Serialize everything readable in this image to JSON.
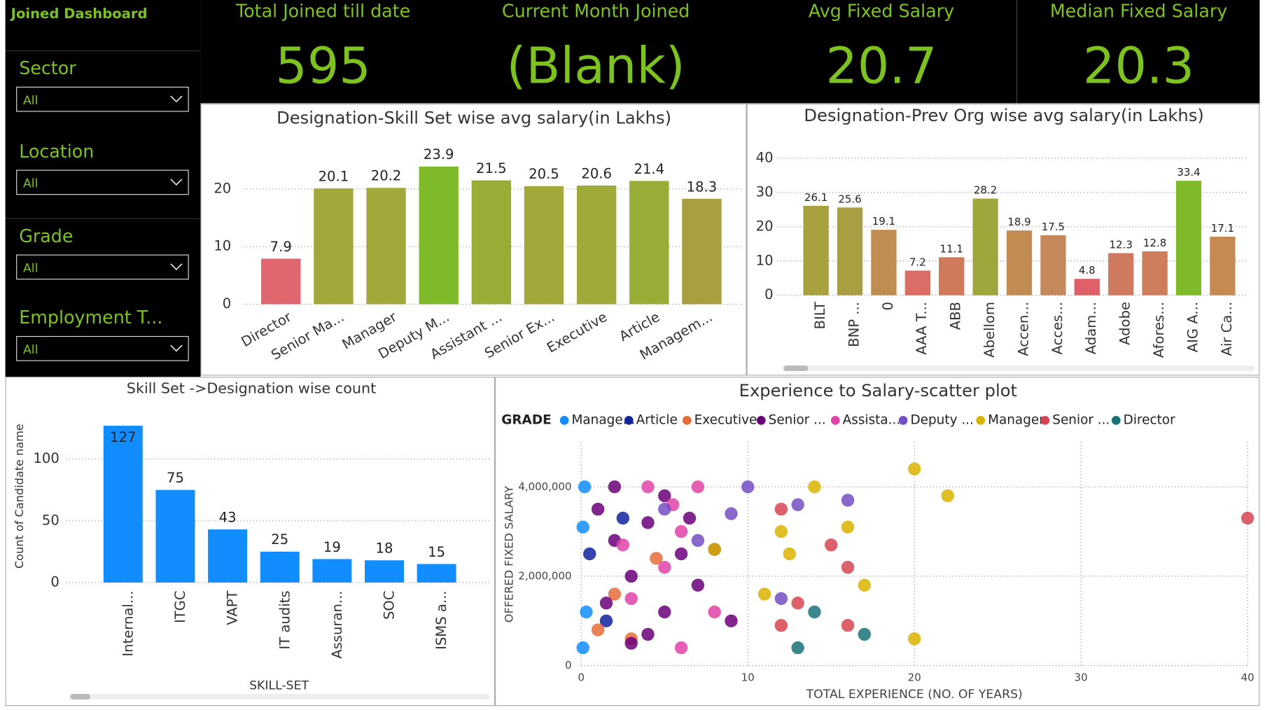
{
  "dashboard_title": "Joined Dashboard",
  "filters": [
    {
      "label": "Sector",
      "value": "All"
    },
    {
      "label": "Location",
      "value": "All"
    },
    {
      "label": "Grade",
      "value": "All"
    },
    {
      "label": "Employment T...",
      "value": "All"
    }
  ],
  "kpis": [
    {
      "label": "Total Joined till date",
      "value": 595
    },
    {
      "label": "Current Month Joined",
      "value": "(Blank)"
    },
    {
      "label": "Avg Fixed Salary",
      "value": 20.7
    },
    {
      "label": "Median Fixed Salary",
      "value": 20.3
    }
  ],
  "chart_data": [
    {
      "type": "bar",
      "title": "Designation-Skill Set wise avg salary(in Lakhs)",
      "categories": [
        "Director",
        "Senior Ma...",
        "Manager",
        "Deputy M...",
        "Assistant ...",
        "Senior Ex...",
        "Executive",
        "Article",
        "Managem..."
      ],
      "values": [
        7.9,
        20.1,
        20.2,
        23.9,
        21.5,
        20.5,
        20.6,
        21.4,
        18.3
      ],
      "colors": [
        "#e06670",
        "#a3a83a",
        "#a3a83a",
        "#7fba2a",
        "#97ad35",
        "#a3a83a",
        "#a0aa38",
        "#98ad35",
        "#a89f40"
      ],
      "ylim": [
        0,
        29
      ],
      "yticks": [
        0,
        10,
        20
      ],
      "grid": true
    },
    {
      "type": "bar",
      "title": "Designation-Prev Org wise avg salary(in Lakhs)",
      "categories": [
        "BILT",
        "BNP ...",
        "0",
        "AAA T...",
        "ABB",
        "Abellom",
        "Accen...",
        "Acces...",
        "Adam...",
        "Adobe",
        "Afores...",
        "AIG A...",
        "Air Ca..."
      ],
      "values": [
        26.1,
        25.6,
        19.1,
        7.2,
        11.1,
        28.2,
        18.9,
        17.5,
        4.8,
        12.3,
        12.8,
        33.4,
        17.1
      ],
      "colors": [
        "#a9a040",
        "#aa9e42",
        "#c08d50",
        "#dc6c66",
        "#d07a5c",
        "#9fa63c",
        "#c28b52",
        "#c5885a",
        "#e0606a",
        "#cf7a5e",
        "#cd7c5c",
        "#7fba2a",
        "#c58a52"
      ],
      "ylim": [
        0,
        40
      ],
      "yticks": [
        0,
        10,
        20,
        30,
        40
      ],
      "grid": true
    },
    {
      "type": "bar",
      "title": "Skill Set ->Designation wise count",
      "x_label": "SKILL-SET",
      "y_label": "Count of Candidate name",
      "categories": [
        "Internal...",
        "ITGC",
        "VAPT",
        "IT audits",
        "Assuran...",
        "SOC",
        "ISMS a..."
      ],
      "values": [
        127,
        75,
        43,
        25,
        19,
        18,
        15
      ],
      "color": "#118dff",
      "ylim": [
        0,
        132
      ],
      "yticks": [
        0,
        50,
        100
      ],
      "grid": true
    },
    {
      "type": "scatter",
      "title": "Experience to Salary-scatter plot",
      "legend_title": "GRADE",
      "x_label": "TOTAL EXPERIENCE (NO. OF YEARS)",
      "y_label": "OFFERED FIXED SALARY",
      "xlim": [
        0,
        40
      ],
      "xticks": [
        0,
        10,
        20,
        30,
        40
      ],
      "ylim": [
        0,
        5000000
      ],
      "yticks": [
        0,
        {
          "value": 2000000,
          "label": "2,000,000"
        },
        {
          "value": 4000000,
          "label": "4,000,000"
        }
      ],
      "grid": true,
      "series": [
        {
          "name": "Manage...",
          "color": "#118dff",
          "x": [
            0.2,
            0.1,
            0.3,
            0.1
          ],
          "values": [
            4000000,
            3100000,
            1200000,
            400000
          ]
        },
        {
          "name": "Article",
          "color": "#12239e",
          "x": [
            0.5,
            1.5,
            2.5
          ],
          "values": [
            2500000,
            1000000,
            3300000
          ]
        },
        {
          "name": "Executive",
          "color": "#e66c37",
          "x": [
            1,
            2,
            3,
            4.5
          ],
          "values": [
            800000,
            1600000,
            600000,
            2400000
          ]
        },
        {
          "name": "Senior ...",
          "color": "#6b007b",
          "x": [
            1,
            2,
            3,
            4,
            5,
            6,
            3,
            7,
            8,
            9,
            2,
            5,
            1.5,
            4,
            6.5
          ],
          "values": [
            3500000,
            2800000,
            2000000,
            3200000,
            1200000,
            2500000,
            500000,
            1800000,
            2600000,
            1000000,
            4000000,
            3800000,
            1400000,
            700000,
            3300000
          ]
        },
        {
          "name": "Assista...",
          "color": "#e044a7",
          "x": [
            4,
            5,
            6,
            7,
            3,
            6,
            8,
            5.5,
            2.5
          ],
          "values": [
            4000000,
            2200000,
            3000000,
            4000000,
            1500000,
            400000,
            1200000,
            3600000,
            2700000
          ]
        },
        {
          "name": "Deputy ...",
          "color": "#744ec2",
          "x": [
            7,
            9,
            10,
            12,
            13,
            16,
            5
          ],
          "values": [
            2800000,
            3400000,
            4000000,
            1500000,
            3600000,
            3700000,
            3500000
          ]
        },
        {
          "name": "Manager",
          "color": "#d9b300",
          "x": [
            20,
            22,
            14,
            12,
            16,
            20,
            17,
            11,
            8,
            12.5
          ],
          "values": [
            4400000,
            3800000,
            4000000,
            3000000,
            3100000,
            600000,
            1800000,
            1600000,
            2600000,
            2500000
          ]
        },
        {
          "name": "Senior ...",
          "color": "#d64550",
          "x": [
            40,
            12,
            15,
            16,
            16,
            13,
            12
          ],
          "values": [
            3300000,
            3500000,
            2700000,
            2200000,
            900000,
            1400000,
            900000
          ]
        },
        {
          "name": "Director",
          "color": "#197278",
          "x": [
            14,
            13,
            17
          ],
          "values": [
            1200000,
            400000,
            700000
          ]
        }
      ]
    }
  ]
}
